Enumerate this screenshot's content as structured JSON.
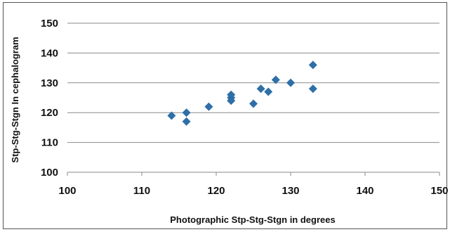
{
  "chart_data": {
    "type": "scatter",
    "title": "",
    "xlabel": "Photographic Stp-Stg-Stgn in degrees",
    "ylabel": "Stp-Stg-Stgn In cephalogram",
    "xlim": [
      100,
      150
    ],
    "ylim": [
      100,
      150
    ],
    "x_ticks": [
      "100",
      "110",
      "120",
      "130",
      "140",
      "150"
    ],
    "y_ticks": [
      "100",
      "110",
      "120",
      "130",
      "140",
      "150"
    ],
    "grid": "horizontal",
    "legend": "none",
    "marker": "diamond",
    "color": "#2e6fa7",
    "series": [
      {
        "points": [
          {
            "x": 114,
            "y": 119
          },
          {
            "x": 116,
            "y": 120
          },
          {
            "x": 116,
            "y": 117
          },
          {
            "x": 119,
            "y": 122
          },
          {
            "x": 122,
            "y": 126
          },
          {
            "x": 122,
            "y": 125
          },
          {
            "x": 122,
            "y": 124
          },
          {
            "x": 125,
            "y": 123
          },
          {
            "x": 126,
            "y": 128
          },
          {
            "x": 127,
            "y": 127
          },
          {
            "x": 128,
            "y": 131
          },
          {
            "x": 130,
            "y": 130
          },
          {
            "x": 133,
            "y": 136
          },
          {
            "x": 133,
            "y": 128
          }
        ]
      }
    ]
  }
}
